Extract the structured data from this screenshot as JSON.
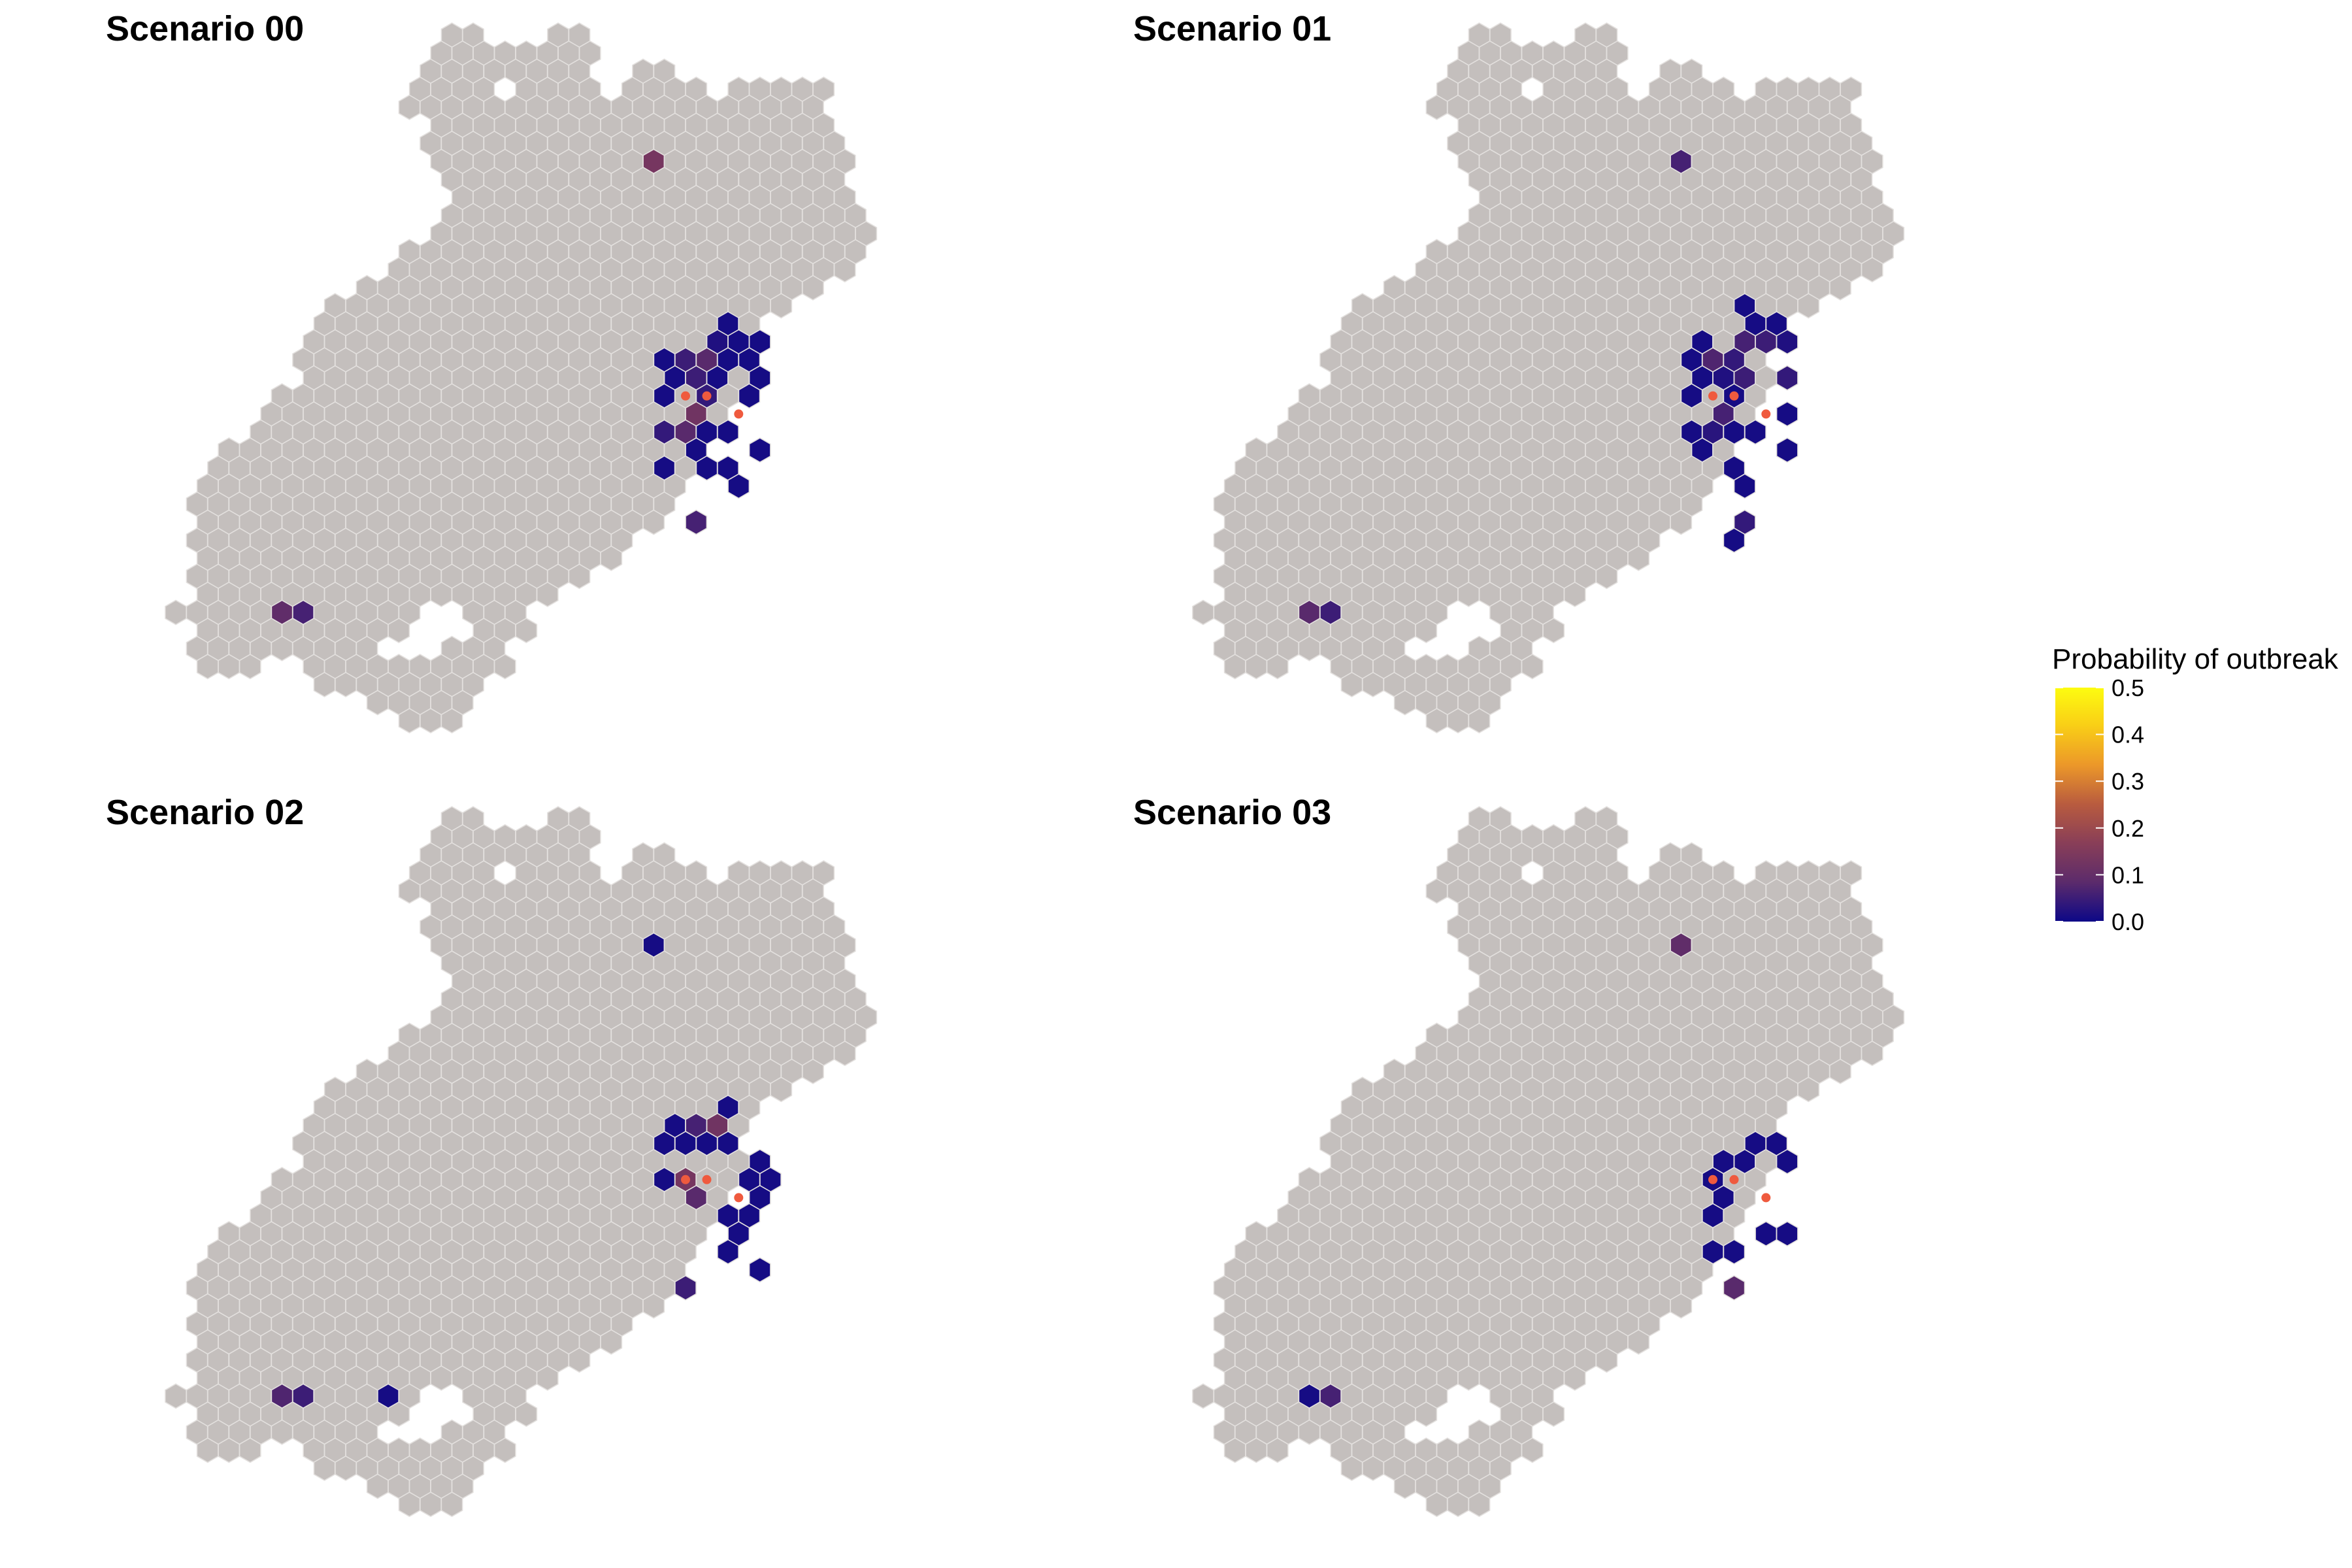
{
  "chart_data": {
    "type": "heatmap",
    "panels": [
      {
        "title": "Scenario 00",
        "cells": [
          {
            "col": 6,
            "row": -5,
            "p": 0.13
          },
          {
            "col": 10,
            "row": 4,
            "p": 0.01
          },
          {
            "col": 9,
            "row": 5,
            "p": 0.02
          },
          {
            "col": 10,
            "row": 5,
            "p": 0.01
          },
          {
            "col": 11,
            "row": 5,
            "p": 0.01
          },
          {
            "col": 7,
            "row": 6,
            "p": 0.01
          },
          {
            "col": 8,
            "row": 6,
            "p": 0.05
          },
          {
            "col": 9,
            "row": 6,
            "p": 0.08
          },
          {
            "col": 10,
            "row": 6,
            "p": 0.01
          },
          {
            "col": 11,
            "row": 6,
            "p": 0.01
          },
          {
            "col": 7,
            "row": 7,
            "p": 0.01
          },
          {
            "col": 8,
            "row": 7,
            "p": 0.05
          },
          {
            "col": 9,
            "row": 7,
            "p": 0.01
          },
          {
            "col": 11,
            "row": 7,
            "p": 0.01
          },
          {
            "col": 7,
            "row": 8,
            "p": 0.01
          },
          {
            "col": 9,
            "row": 8,
            "p": 0.04
          },
          {
            "col": 11,
            "row": 8,
            "p": 0.01
          },
          {
            "col": 8,
            "row": 9,
            "p": 0.12
          },
          {
            "col": 7,
            "row": 10,
            "p": 0.04
          },
          {
            "col": 8,
            "row": 10,
            "p": 0.08
          },
          {
            "col": 9,
            "row": 10,
            "p": 0.01
          },
          {
            "col": 10,
            "row": 10,
            "p": 0.01
          },
          {
            "col": 8,
            "row": 11,
            "p": 0.01
          },
          {
            "col": 11,
            "row": 11,
            "p": 0.01
          },
          {
            "col": 7,
            "row": 12,
            "p": 0.01
          },
          {
            "col": 9,
            "row": 12,
            "p": 0.01
          },
          {
            "col": 10,
            "row": 12,
            "p": 0.01
          },
          {
            "col": 10,
            "row": 13,
            "p": 0.01
          },
          {
            "col": 8,
            "row": 15,
            "p": 0.06
          },
          {
            "col": -11,
            "row": 20,
            "p": 0.09
          },
          {
            "col": -10,
            "row": 20,
            "p": 0.06
          }
        ]
      },
      {
        "title": "Scenario 01",
        "cells": [
          {
            "col": 6,
            "row": -5,
            "p": 0.06
          },
          {
            "col": 9,
            "row": 3,
            "p": 0.01
          },
          {
            "col": 10,
            "row": 4,
            "p": 0.01
          },
          {
            "col": 11,
            "row": 4,
            "p": 0.01
          },
          {
            "col": 7,
            "row": 5,
            "p": 0.01
          },
          {
            "col": 9,
            "row": 5,
            "p": 0.06
          },
          {
            "col": 10,
            "row": 5,
            "p": 0.05
          },
          {
            "col": 11,
            "row": 5,
            "p": 0.02
          },
          {
            "col": 7,
            "row": 6,
            "p": 0.01
          },
          {
            "col": 8,
            "row": 6,
            "p": 0.07
          },
          {
            "col": 9,
            "row": 6,
            "p": 0.04
          },
          {
            "col": 7,
            "row": 7,
            "p": 0.01
          },
          {
            "col": 8,
            "row": 7,
            "p": 0.02
          },
          {
            "col": 9,
            "row": 7,
            "p": 0.05
          },
          {
            "col": 11,
            "row": 7,
            "p": 0.04
          },
          {
            "col": 7,
            "row": 8,
            "p": 0.01
          },
          {
            "col": 9,
            "row": 8,
            "p": 0.01
          },
          {
            "col": 8,
            "row": 9,
            "p": 0.06
          },
          {
            "col": 11,
            "row": 9,
            "p": 0.01
          },
          {
            "col": 7,
            "row": 10,
            "p": 0.01
          },
          {
            "col": 8,
            "row": 10,
            "p": 0.03
          },
          {
            "col": 9,
            "row": 10,
            "p": 0.01
          },
          {
            "col": 10,
            "row": 10,
            "p": 0.01
          },
          {
            "col": 7,
            "row": 11,
            "p": 0.01
          },
          {
            "col": 11,
            "row": 11,
            "p": 0.01
          },
          {
            "col": 9,
            "row": 12,
            "p": 0.01
          },
          {
            "col": 9,
            "row": 13,
            "p": 0.01
          },
          {
            "col": 9,
            "row": 15,
            "p": 0.04
          },
          {
            "col": 9,
            "row": 16,
            "p": 0.01
          },
          {
            "col": -11,
            "row": 20,
            "p": 0.08
          },
          {
            "col": -10,
            "row": 20,
            "p": 0.05
          }
        ]
      },
      {
        "title": "Scenario 02",
        "cells": [
          {
            "col": 6,
            "row": -5,
            "p": 0.01
          },
          {
            "col": 10,
            "row": 4,
            "p": 0.01
          },
          {
            "col": 7,
            "row": 5,
            "p": 0.01
          },
          {
            "col": 8,
            "row": 5,
            "p": 0.06
          },
          {
            "col": 9,
            "row": 5,
            "p": 0.12
          },
          {
            "col": 7,
            "row": 6,
            "p": 0.01
          },
          {
            "col": 8,
            "row": 6,
            "p": 0.01
          },
          {
            "col": 9,
            "row": 6,
            "p": 0.01
          },
          {
            "col": 10,
            "row": 6,
            "p": 0.01
          },
          {
            "col": 11,
            "row": 7,
            "p": 0.01
          },
          {
            "col": 7,
            "row": 8,
            "p": 0.01
          },
          {
            "col": 8,
            "row": 8,
            "p": 0.13
          },
          {
            "col": 11,
            "row": 8,
            "p": 0.01
          },
          {
            "col": 12,
            "row": 8,
            "p": 0.01
          },
          {
            "col": 8,
            "row": 9,
            "p": 0.08
          },
          {
            "col": 11,
            "row": 9,
            "p": 0.01
          },
          {
            "col": 10,
            "row": 10,
            "p": 0.01
          },
          {
            "col": 11,
            "row": 10,
            "p": 0.01
          },
          {
            "col": 10,
            "row": 11,
            "p": 0.01
          },
          {
            "col": 10,
            "row": 12,
            "p": 0.01
          },
          {
            "col": 11,
            "row": 13,
            "p": 0.01
          },
          {
            "col": 8,
            "row": 14,
            "p": 0.05
          },
          {
            "col": -11,
            "row": 20,
            "p": 0.07
          },
          {
            "col": -10,
            "row": 20,
            "p": 0.05
          },
          {
            "col": -6,
            "row": 20,
            "p": 0.01
          }
        ]
      },
      {
        "title": "Scenario 03",
        "cells": [
          {
            "col": 6,
            "row": -5,
            "p": 0.09
          },
          {
            "col": 10,
            "row": 6,
            "p": 0.01
          },
          {
            "col": 11,
            "row": 6,
            "p": 0.01
          },
          {
            "col": 8,
            "row": 7,
            "p": 0.01
          },
          {
            "col": 9,
            "row": 7,
            "p": 0.01
          },
          {
            "col": 11,
            "row": 7,
            "p": 0.01
          },
          {
            "col": 8,
            "row": 8,
            "p": 0.01
          },
          {
            "col": 8,
            "row": 9,
            "p": 0.01
          },
          {
            "col": 8,
            "row": 10,
            "p": 0.01
          },
          {
            "col": 10,
            "row": 11,
            "p": 0.01
          },
          {
            "col": 11,
            "row": 11,
            "p": 0.01
          },
          {
            "col": 8,
            "row": 12,
            "p": 0.01
          },
          {
            "col": 9,
            "row": 12,
            "p": 0.01
          },
          {
            "col": 9,
            "row": 14,
            "p": 0.08
          },
          {
            "col": -11,
            "row": 20,
            "p": 0.01
          },
          {
            "col": -10,
            "row": 20,
            "p": 0.06
          }
        ]
      }
    ],
    "seed_points": [
      {
        "col": 8,
        "row": 8
      },
      {
        "col": 9,
        "row": 8
      },
      {
        "col": 10,
        "row": 9
      }
    ],
    "legend": {
      "title": "Probability of outbreak",
      "min": 0.0,
      "max": 0.5,
      "ticks": [
        "0.5",
        "0.4",
        "0.3",
        "0.2",
        "0.1",
        "0.0"
      ],
      "placement": "right"
    },
    "colors": {
      "background_hex": "#c4bfbd",
      "hex_border": "#e3e0de",
      "seed_point": "#ef5a3e",
      "scale": [
        "#0d0887",
        "#5c2b6b",
        "#8a3f57",
        "#b85b3f",
        "#ec9829",
        "#f9cf16",
        "#fdfc10"
      ]
    }
  }
}
